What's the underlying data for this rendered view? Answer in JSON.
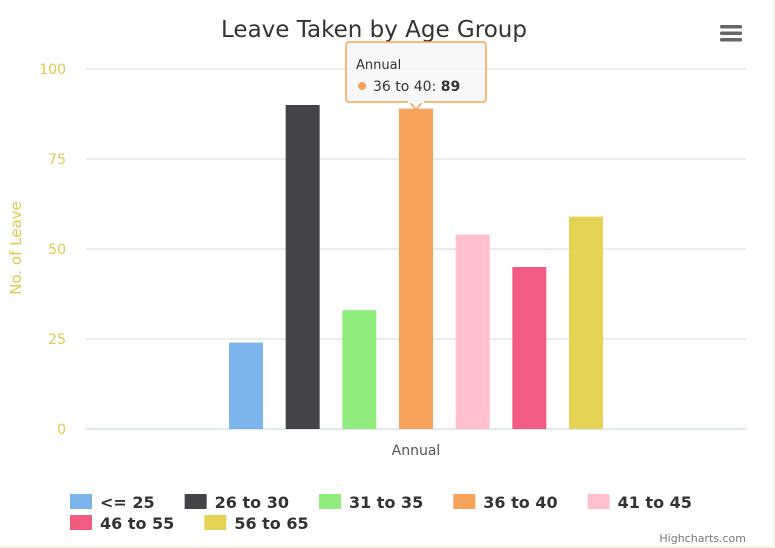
{
  "chart_data": {
    "type": "bar",
    "title": "Leave Taken by Age Group",
    "ylabel": "No. of Leave",
    "xlabel": "",
    "categories": [
      "Annual"
    ],
    "ylim": [
      0,
      100
    ],
    "yticks": [
      0,
      25,
      50,
      75,
      100
    ],
    "grid": true,
    "legend_position": "bottom-left",
    "series": [
      {
        "name": "<= 25",
        "values": [
          24
        ],
        "color": "#7cb5ec"
      },
      {
        "name": "26 to 30",
        "values": [
          90
        ],
        "color": "#434348"
      },
      {
        "name": "31 to 35",
        "values": [
          33
        ],
        "color": "#90ed7d"
      },
      {
        "name": "36 to 40",
        "values": [
          89
        ],
        "color": "#f7a35c"
      },
      {
        "name": "41 to 45",
        "values": [
          54
        ],
        "color": "#ffc0cb"
      },
      {
        "name": "46 to 55",
        "values": [
          45
        ],
        "color": "#f15c80"
      },
      {
        "name": "56 to 65",
        "values": [
          59
        ],
        "color": "#e4d354"
      }
    ],
    "tooltip": {
      "category": "Annual",
      "series": "36 to 40",
      "value": 89
    }
  },
  "menu": {
    "icon": "hamburger-menu-icon"
  },
  "credits": "Highcharts.com"
}
